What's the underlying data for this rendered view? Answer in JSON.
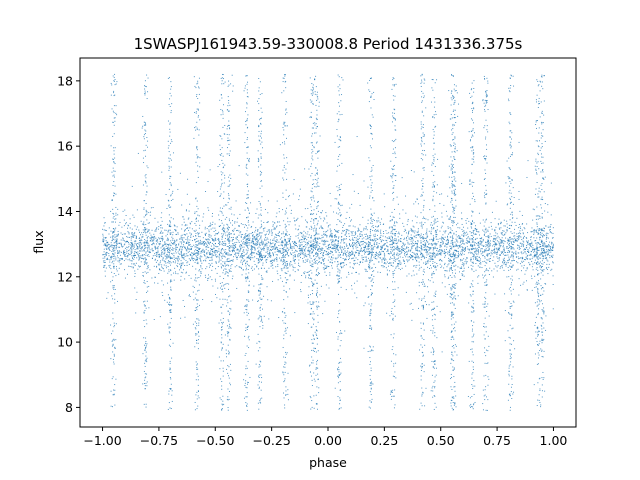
{
  "chart_data": {
    "type": "scatter",
    "title": "1SWASPJ161943.59-330008.8 Period 1431336.375s",
    "xlabel": "phase",
    "ylabel": "flux",
    "xlim": [
      -1.1,
      1.1
    ],
    "ylim": [
      7.4,
      18.7
    ],
    "x_ticks": [
      -1.0,
      -0.75,
      -0.5,
      -0.25,
      0.0,
      0.25,
      0.5,
      0.75,
      1.0
    ],
    "x_tick_labels": [
      "−1.00",
      "−0.75",
      "−0.50",
      "−0.25",
      "0.00",
      "0.25",
      "0.50",
      "0.75",
      "1.00"
    ],
    "y_ticks": [
      8,
      10,
      12,
      14,
      16,
      18
    ],
    "y_tick_labels": [
      "8",
      "10",
      "12",
      "14",
      "16",
      "18"
    ],
    "grid": false,
    "marker_color": "#1f77b4",
    "series": [
      {
        "baseline_flux": 12.9,
        "phase_range": [
          -1.0,
          1.0
        ],
        "folding": "phase data repeated over two cycles (period 1.0 in phase)",
        "dense_band": [
          11.8,
          14.0
        ],
        "min_flux": 7.9,
        "max_flux": 18.2,
        "spike_phases": [
          -0.95,
          -0.81,
          -0.7,
          -0.58,
          -0.47,
          -0.44,
          -0.36,
          -0.3,
          -0.19,
          -0.07,
          -0.05,
          0.05,
          0.19,
          0.29,
          0.42,
          0.47,
          0.55,
          0.56,
          0.64,
          0.7,
          0.81,
          0.93,
          0.95
        ]
      }
    ]
  }
}
